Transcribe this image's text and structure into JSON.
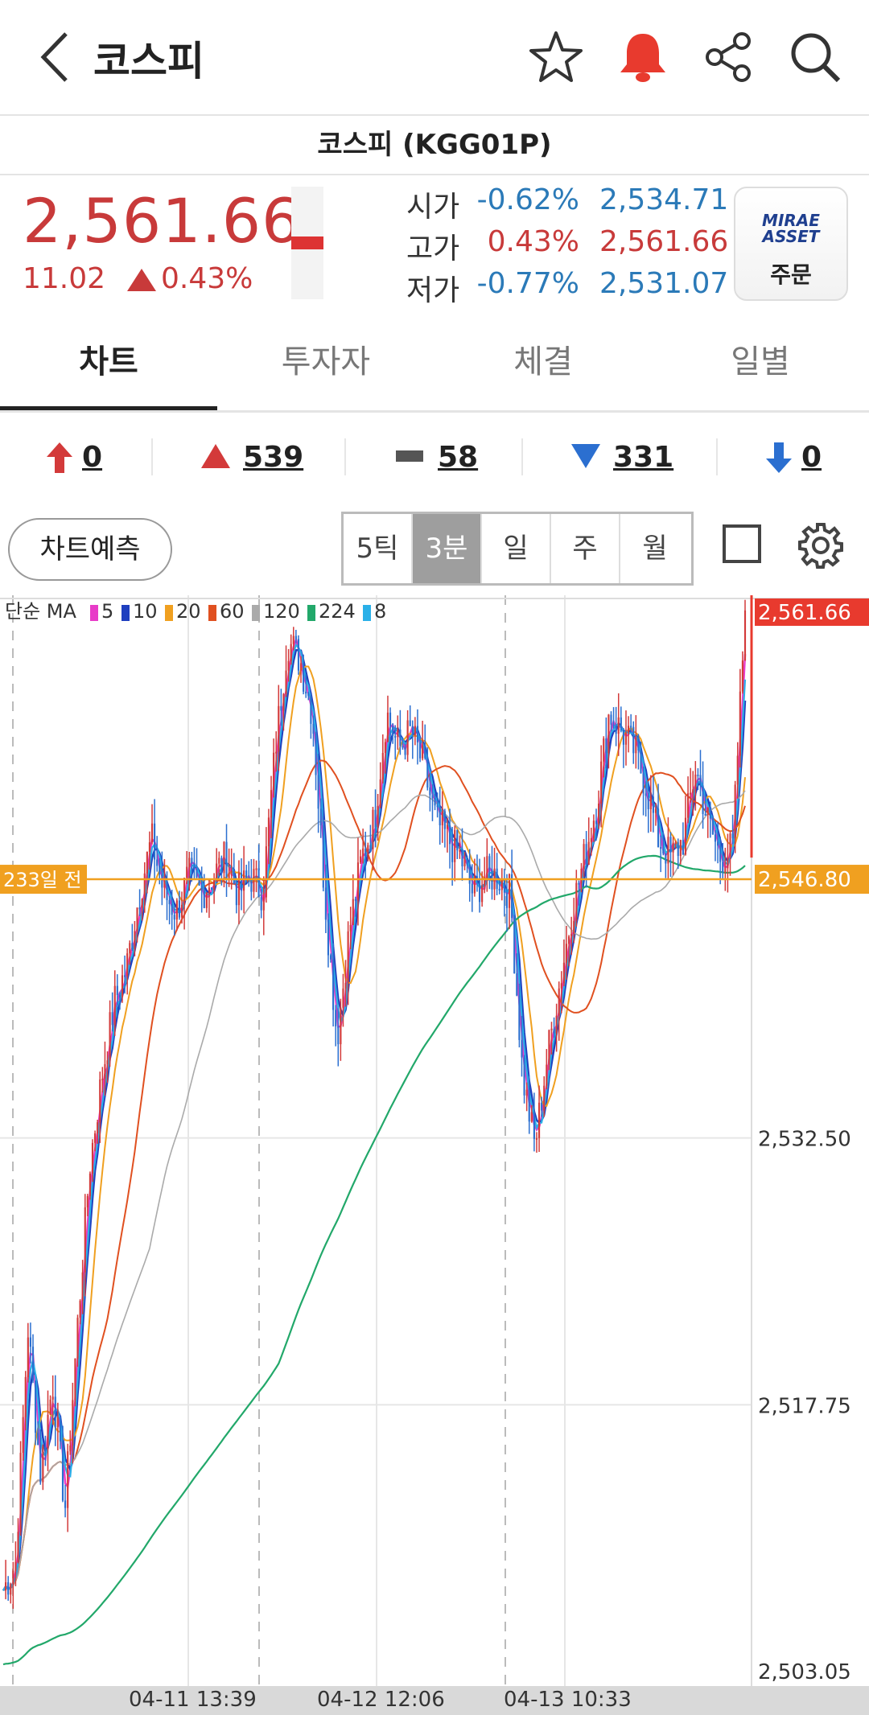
{
  "header": {
    "title": "코스피"
  },
  "symbol": {
    "name": "코스피 (KGG01P)"
  },
  "quote": {
    "price": "2,561.66",
    "change": "11.02",
    "change_pct": "0.43%",
    "open": {
      "label": "시가",
      "pct": "-0.62%",
      "value": "2,534.71"
    },
    "high": {
      "label": "고가",
      "pct": "0.43%",
      "value": "2,561.66"
    },
    "low": {
      "label": "저가",
      "pct": "-0.77%",
      "value": "2,531.07"
    }
  },
  "order": {
    "brand": "MIRAE ASSET",
    "label": "주문"
  },
  "tabs": [
    {
      "label": "차트"
    },
    {
      "label": "투자자"
    },
    {
      "label": "체결"
    },
    {
      "label": "일별"
    }
  ],
  "counts": {
    "upper_limit": "0",
    "advance": "539",
    "unchanged": "58",
    "decline": "331",
    "lower_limit": "0"
  },
  "controls": {
    "predict_label": "차트예측",
    "periods": [
      {
        "label": "5틱"
      },
      {
        "label": "3분"
      },
      {
        "label": "일"
      },
      {
        "label": "주"
      },
      {
        "label": "월"
      }
    ],
    "active_period": "3분"
  },
  "colors": {
    "up": "#d33a3a",
    "down": "#2b6fd0",
    "accent": "#e83a2e",
    "ref_line": "#f0a020"
  },
  "chart_data": {
    "type": "candlestick",
    "legend": {
      "prefix": "단순 MA",
      "entries": [
        {
          "period": "5",
          "color": "#e83cc8"
        },
        {
          "period": "10",
          "color": "#1f3fbf"
        },
        {
          "period": "20",
          "color": "#f0a020"
        },
        {
          "period": "60",
          "color": "#e05020"
        },
        {
          "period": "120",
          "color": "#aaaaaa"
        },
        {
          "period": "224",
          "color": "#22a86a"
        },
        {
          "period": "8",
          "color": "#2ab0e8"
        }
      ]
    },
    "y_ticks": [
      "2,532.50",
      "2,517.75",
      "2,503.05"
    ],
    "ylim": [
      2503.05,
      2561.66
    ],
    "current_price_label": "2,561.66",
    "reference": {
      "label": "233일 전",
      "value_label": "2,546.80",
      "value": 2546.8
    },
    "x_labels": [
      "04-11 13:39",
      "04-12 12:06",
      "04-13 10:33"
    ],
    "close_path": [
      2507.5,
      2509,
      2522,
      2514,
      2519,
      2512,
      2522,
      2531,
      2536,
      2540,
      2542,
      2546,
      2549,
      2546,
      2545,
      2547,
      2546,
      2547,
      2548,
      2546,
      2547,
      2546,
      2554,
      2560,
      2559,
      2556,
      2546,
      2538,
      2544,
      2548,
      2550,
      2556,
      2554,
      2555,
      2553,
      2550,
      2549,
      2548,
      2546,
      2547,
      2547,
      2546,
      2536,
      2532,
      2537,
      2541,
      2545,
      2548,
      2551,
      2556,
      2555,
      2554,
      2552,
      2549,
      2548,
      2549,
      2553,
      2550,
      2548,
      2548.5,
      2561.66
    ]
  }
}
